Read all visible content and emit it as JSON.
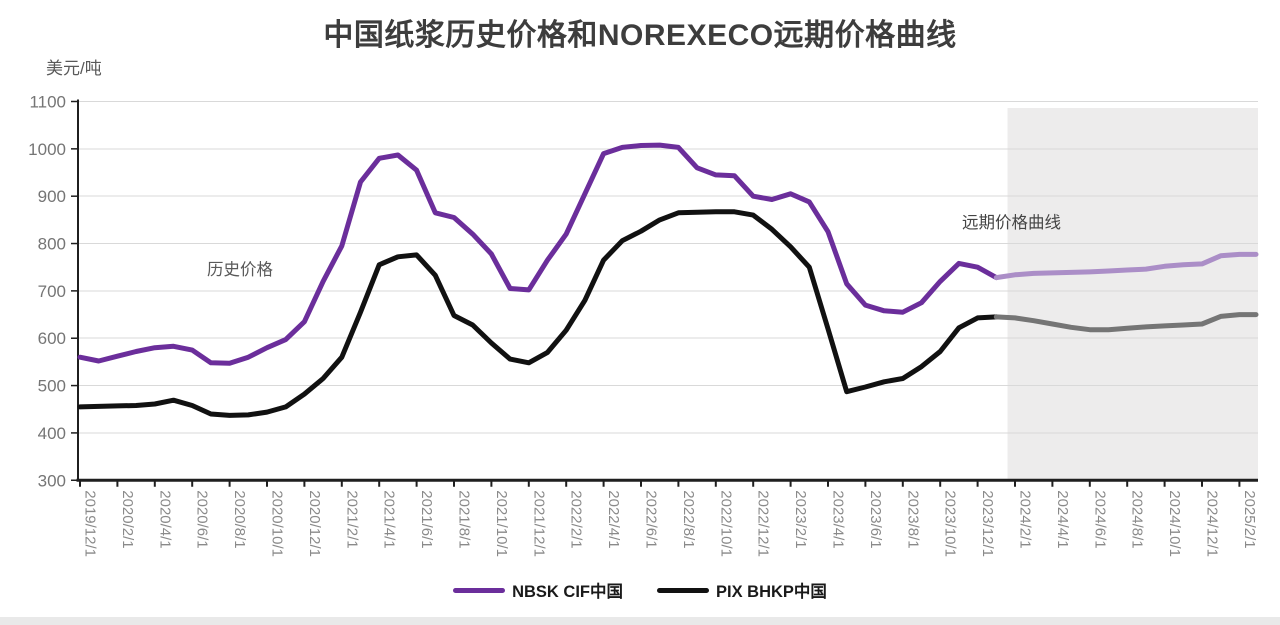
{
  "title": "中国纸浆历史价格和NOREXECO远期价格曲线",
  "y_axis_unit": "美元/吨",
  "annotations": {
    "history_label": "历史价格",
    "forward_label": "远期价格曲线"
  },
  "legend": {
    "items": [
      {
        "label": "NBSK CIF中国",
        "color": "#6B2E9B"
      },
      {
        "label": "PIX BHKP中国",
        "color": "#111111"
      }
    ]
  },
  "colors": {
    "forward_shading": "#EDECEC",
    "gridline": "#D9D9D9",
    "axis": "#1F1F1F",
    "x_tick_label": "#8A8A8A",
    "y_tick_label": "#757575",
    "title": "#3d3d3d"
  },
  "chart_data": {
    "type": "line",
    "title": "中国纸浆历史价格和NOREXECO远期价格曲线",
    "xlabel": "",
    "ylabel": "美元/吨",
    "ylim": [
      300,
      1100
    ],
    "grid": true,
    "legend_position": "bottom",
    "y_ticks": [
      300,
      400,
      500,
      600,
      700,
      800,
      900,
      1000,
      1100
    ],
    "x_tick_labels": [
      "2019/12/1",
      "2020/2/1",
      "2020/4/1",
      "2020/6/1",
      "2020/8/1",
      "2020/10/1",
      "2020/12/1",
      "2021/2/1",
      "2021/4/1",
      "2021/6/1",
      "2021/8/1",
      "2021/10/1",
      "2021/12/1",
      "2022/2/1",
      "2022/4/1",
      "2022/6/1",
      "2022/8/1",
      "2022/10/1",
      "2022/12/1",
      "2023/2/1",
      "2023/4/1",
      "2023/6/1",
      "2023/8/1",
      "2023/10/1",
      "2023/12/1",
      "2024/2/1",
      "2024/4/1",
      "2024/6/1",
      "2024/8/1",
      "2024/10/1",
      "2024/12/1",
      "2025/2/1"
    ],
    "x_months_per_point": 1,
    "x_ticks_every_points": 2,
    "forward_region_starts_at": "2024/2/1",
    "series": [
      {
        "name": "NBSK CIF中国 (历史价格)",
        "color": "#6B2E9B",
        "start_index": 0,
        "values": [
          560,
          552,
          562,
          572,
          580,
          583,
          575,
          548,
          547,
          560,
          580,
          597,
          635,
          720,
          795,
          930,
          980,
          987,
          955,
          865,
          855,
          820,
          778,
          705,
          702,
          765,
          820,
          905,
          990,
          1003,
          1007,
          1008,
          1003,
          960,
          945,
          943,
          900,
          893,
          905,
          888,
          825,
          715,
          670,
          658,
          655,
          675,
          720,
          758,
          750,
          728
        ]
      },
      {
        "name": "PIX BHKP中国 (历史价格)",
        "color": "#111111",
        "start_index": 0,
        "values": [
          455,
          456,
          457,
          458,
          461,
          469,
          458,
          440,
          437,
          438,
          444,
          455,
          482,
          515,
          560,
          655,
          755,
          772,
          776,
          733,
          648,
          628,
          590,
          556,
          548,
          570,
          617,
          680,
          765,
          806,
          826,
          850,
          865,
          866,
          867,
          867,
          860,
          830,
          793,
          750,
          620,
          487,
          497,
          508,
          515,
          540,
          572,
          622,
          643,
          645
        ]
      },
      {
        "name": "NBSK CIF中国 (NOREXECO远期价格曲线)",
        "color": "#AB8EC7",
        "start_index": 49,
        "extends_to_plot_edge": true,
        "values": [
          728,
          734,
          737,
          738,
          739,
          740,
          742,
          744,
          746,
          752,
          755,
          757,
          774,
          777
        ]
      },
      {
        "name": "PIX BHKP中国 (NOREXECO远期价格曲线)",
        "color": "#757575",
        "start_index": 49,
        "extends_to_plot_edge": true,
        "values": [
          645,
          643,
          637,
          630,
          623,
          618,
          618,
          621,
          624,
          626,
          628,
          630,
          646,
          650
        ]
      }
    ]
  }
}
